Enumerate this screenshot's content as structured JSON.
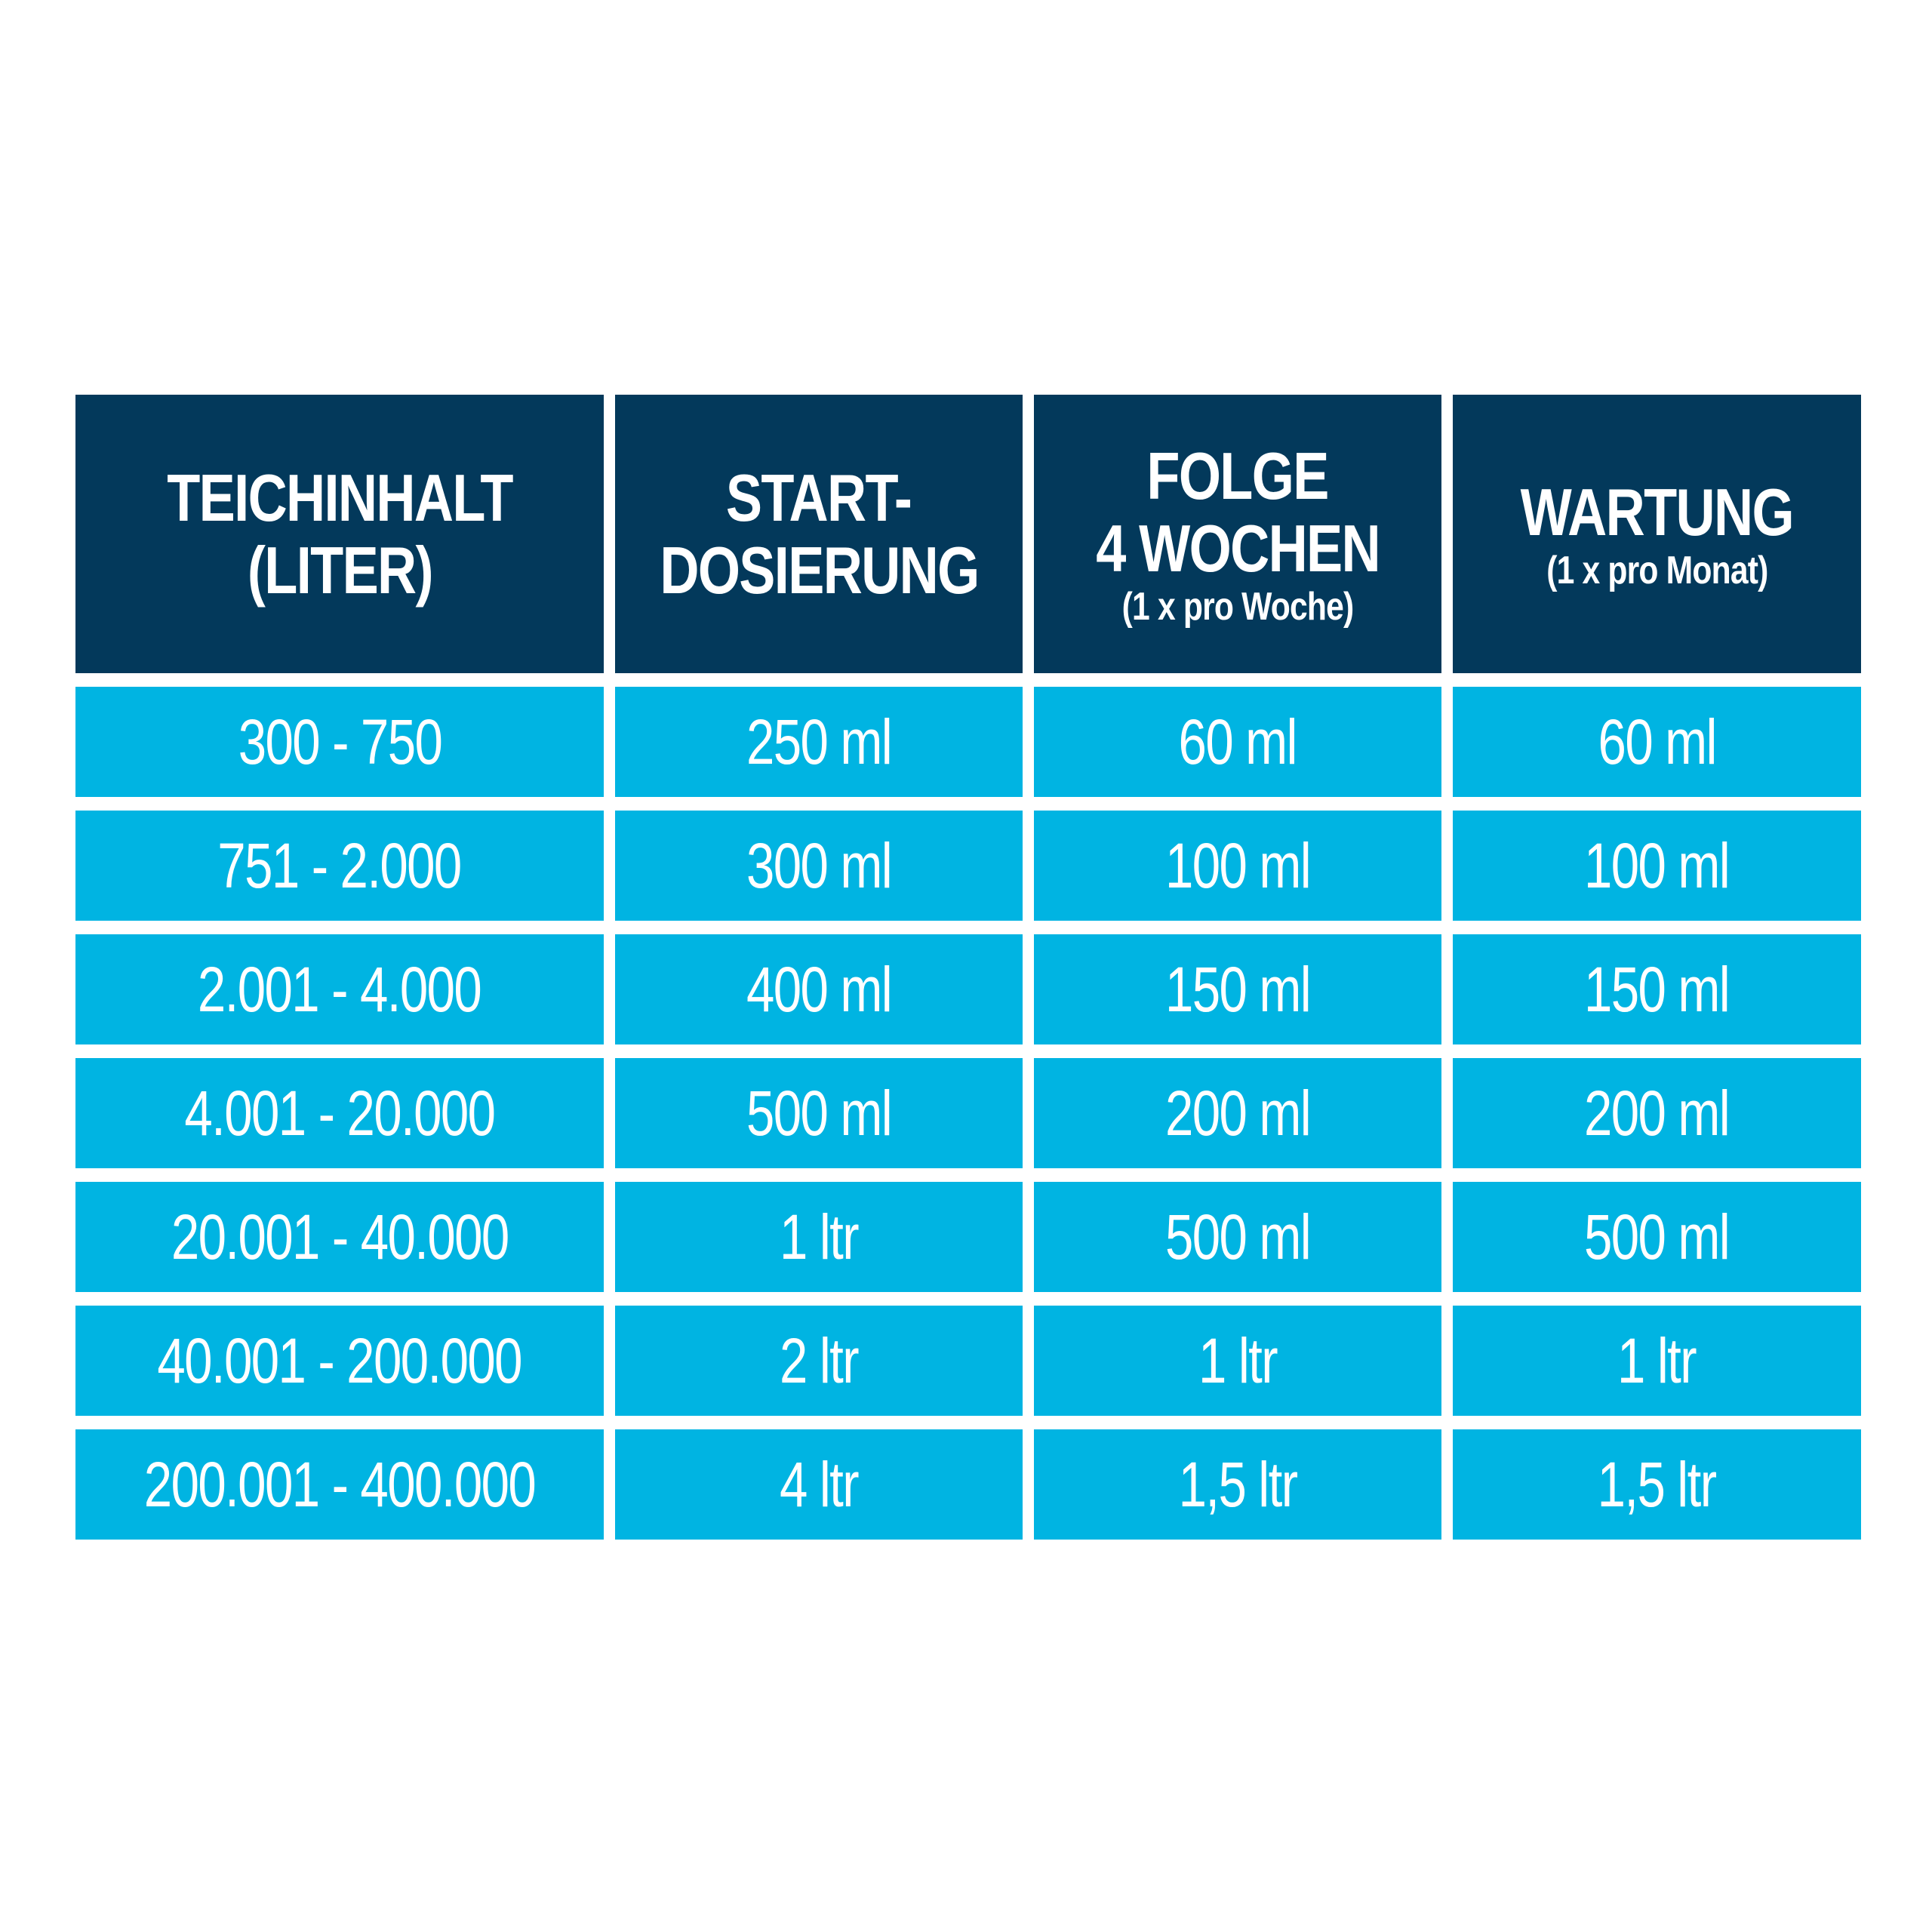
{
  "chart_data": {
    "type": "table",
    "columns": [
      {
        "lines": [
          "TEICHINHALT",
          "(LITER)"
        ],
        "sub": ""
      },
      {
        "lines": [
          "START-",
          "DOSIERUNG"
        ],
        "sub": ""
      },
      {
        "lines": [
          "FOLGE",
          "4 WOCHEN"
        ],
        "sub": "(1 x pro Woche)"
      },
      {
        "lines": [
          "WARTUNG"
        ],
        "sub": "(1 x pro Monat)"
      }
    ],
    "rows": [
      [
        "300 - 750",
        "250 ml",
        "60 ml",
        "60 ml"
      ],
      [
        "751 - 2.000",
        "300 ml",
        "100 ml",
        "100 ml"
      ],
      [
        "2.001 - 4.000",
        "400 ml",
        "150 ml",
        "150 ml"
      ],
      [
        "4.001 - 20.000",
        "500 ml",
        "200 ml",
        "200 ml"
      ],
      [
        "20.001 - 40.000",
        "1 ltr",
        "500 ml",
        "500 ml"
      ],
      [
        "40.001 - 200.000",
        "2 ltr",
        "1 ltr",
        "1 ltr"
      ],
      [
        "200.001 - 400.000",
        "4 ltr",
        "1,5 ltr",
        "1,5 ltr"
      ]
    ],
    "colors": {
      "header_bg": "#03395b",
      "row_bg": "#00b4e2",
      "text": "#ffffff",
      "background": "#ffffff"
    }
  }
}
